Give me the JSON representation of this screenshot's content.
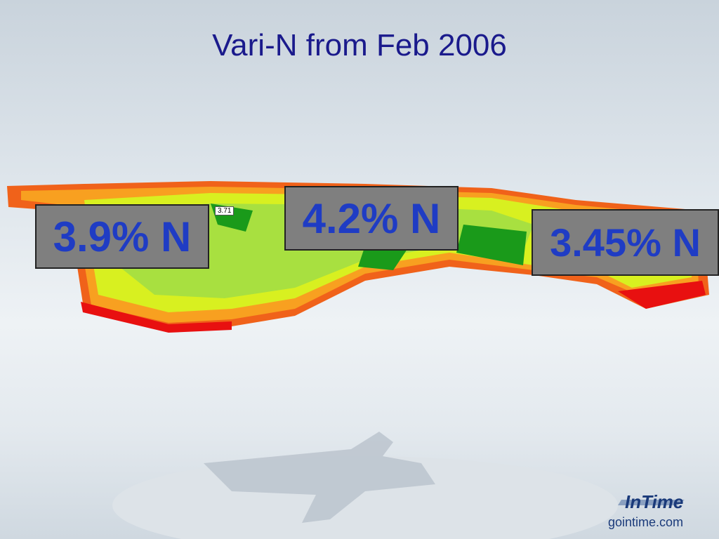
{
  "title": "Vari-N from Feb 2006",
  "labels": [
    "3.9% N",
    "4.2% N",
    "3.45% N"
  ],
  "map_label": "3.71",
  "logo": {
    "brand": "InTime",
    "url": "gointime.com"
  }
}
